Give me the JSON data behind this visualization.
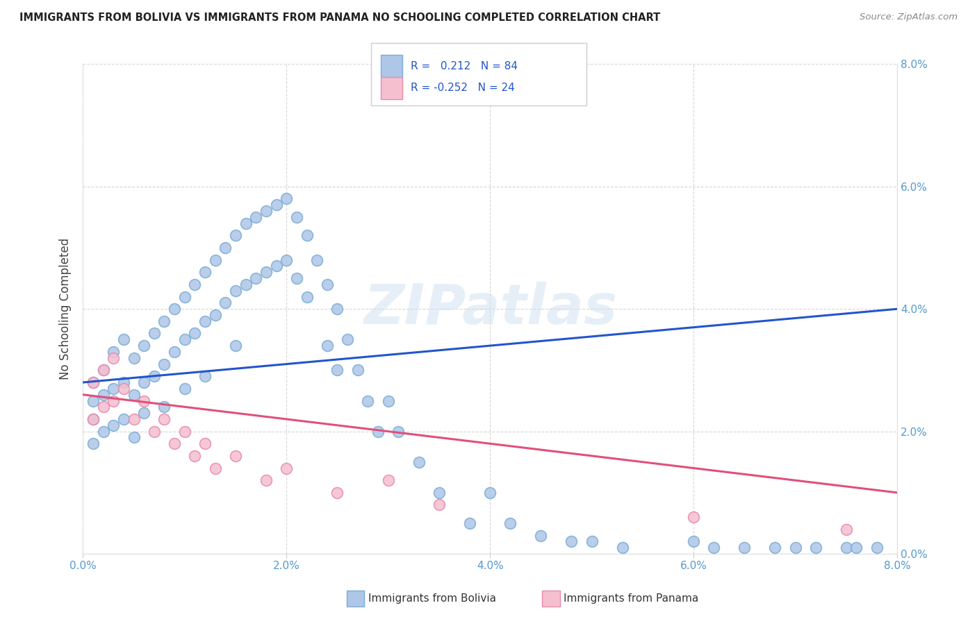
{
  "title": "IMMIGRANTS FROM BOLIVIA VS IMMIGRANTS FROM PANAMA NO SCHOOLING COMPLETED CORRELATION CHART",
  "source": "Source: ZipAtlas.com",
  "ylabel": "No Schooling Completed",
  "watermark_text": "ZIPatlas",
  "bolivia_color": "#aec6e8",
  "bolivia_edge_color": "#7aadd4",
  "panama_color": "#f5bfd0",
  "panama_edge_color": "#e88aaa",
  "bolivia_line_color": "#2255cc",
  "panama_line_color": "#e0507a",
  "R_bolivia": 0.212,
  "N_bolivia": 84,
  "R_panama": -0.252,
  "N_panama": 24,
  "xlim": [
    0.0,
    0.08
  ],
  "ylim": [
    0.0,
    0.08
  ],
  "ticks": [
    0.0,
    0.02,
    0.04,
    0.06,
    0.08
  ],
  "tick_labels": [
    "0.0%",
    "2.0%",
    "4.0%",
    "6.0%",
    "8.0%"
  ],
  "legend_label_bolivia": "Immigrants from Bolivia",
  "legend_label_panama": "Immigrants from Panama",
  "bolivia_x": [
    0.001,
    0.001,
    0.001,
    0.001,
    0.002,
    0.002,
    0.002,
    0.003,
    0.003,
    0.003,
    0.004,
    0.004,
    0.004,
    0.005,
    0.005,
    0.005,
    0.006,
    0.006,
    0.006,
    0.007,
    0.007,
    0.008,
    0.008,
    0.008,
    0.009,
    0.009,
    0.01,
    0.01,
    0.01,
    0.011,
    0.011,
    0.012,
    0.012,
    0.012,
    0.013,
    0.013,
    0.014,
    0.014,
    0.015,
    0.015,
    0.015,
    0.016,
    0.016,
    0.017,
    0.017,
    0.018,
    0.018,
    0.019,
    0.019,
    0.02,
    0.02,
    0.021,
    0.021,
    0.022,
    0.022,
    0.023,
    0.024,
    0.024,
    0.025,
    0.025,
    0.026,
    0.027,
    0.028,
    0.029,
    0.03,
    0.031,
    0.033,
    0.035,
    0.038,
    0.04,
    0.042,
    0.045,
    0.048,
    0.05,
    0.053,
    0.06,
    0.062,
    0.065,
    0.068,
    0.07,
    0.072,
    0.075,
    0.076,
    0.078
  ],
  "bolivia_y": [
    0.028,
    0.025,
    0.022,
    0.018,
    0.03,
    0.026,
    0.02,
    0.033,
    0.027,
    0.021,
    0.035,
    0.028,
    0.022,
    0.032,
    0.026,
    0.019,
    0.034,
    0.028,
    0.023,
    0.036,
    0.029,
    0.038,
    0.031,
    0.024,
    0.04,
    0.033,
    0.042,
    0.035,
    0.027,
    0.044,
    0.036,
    0.046,
    0.038,
    0.029,
    0.048,
    0.039,
    0.05,
    0.041,
    0.052,
    0.043,
    0.034,
    0.054,
    0.044,
    0.055,
    0.045,
    0.056,
    0.046,
    0.057,
    0.047,
    0.058,
    0.048,
    0.055,
    0.045,
    0.052,
    0.042,
    0.048,
    0.044,
    0.034,
    0.04,
    0.03,
    0.035,
    0.03,
    0.025,
    0.02,
    0.025,
    0.02,
    0.015,
    0.01,
    0.005,
    0.01,
    0.005,
    0.003,
    0.002,
    0.002,
    0.001,
    0.002,
    0.001,
    0.001,
    0.001,
    0.001,
    0.001,
    0.001,
    0.001,
    0.001
  ],
  "panama_x": [
    0.001,
    0.001,
    0.002,
    0.002,
    0.003,
    0.003,
    0.004,
    0.005,
    0.006,
    0.007,
    0.008,
    0.009,
    0.01,
    0.011,
    0.012,
    0.013,
    0.015,
    0.018,
    0.02,
    0.025,
    0.03,
    0.035,
    0.06,
    0.075
  ],
  "panama_y": [
    0.028,
    0.022,
    0.03,
    0.024,
    0.032,
    0.025,
    0.027,
    0.022,
    0.025,
    0.02,
    0.022,
    0.018,
    0.02,
    0.016,
    0.018,
    0.014,
    0.016,
    0.012,
    0.014,
    0.01,
    0.012,
    0.008,
    0.006,
    0.004
  ],
  "bolivia_line_x0": 0.0,
  "bolivia_line_x1": 0.08,
  "bolivia_line_y0": 0.028,
  "bolivia_line_y1": 0.04,
  "panama_line_x0": 0.0,
  "panama_line_x1": 0.08,
  "panama_line_y0": 0.026,
  "panama_line_y1": 0.01
}
